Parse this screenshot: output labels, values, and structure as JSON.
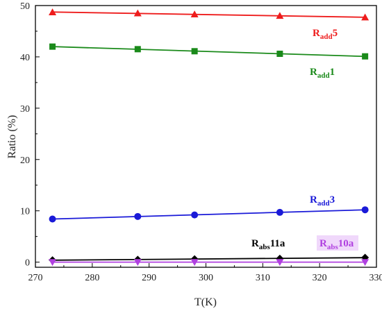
{
  "chart_data": {
    "type": "line",
    "xlabel": "T(K)",
    "ylabel": "Ratio (%)",
    "xlim": [
      270,
      330
    ],
    "ylim": [
      -1,
      50
    ],
    "xticks": [
      270,
      280,
      290,
      300,
      310,
      320,
      330
    ],
    "yticks": [
      0,
      10,
      20,
      30,
      40,
      50
    ],
    "grid": false,
    "series": [
      {
        "main": "R",
        "sub": "add",
        "suffix": "5",
        "color": "#ee1c1c",
        "marker": "triangle",
        "x": [
          273,
          288,
          298,
          313,
          328
        ],
        "y": [
          48.7,
          48.5,
          48.3,
          48.0,
          47.7
        ]
      },
      {
        "main": "R",
        "sub": "add",
        "suffix": "1",
        "color": "#1a8a1a",
        "marker": "square",
        "x": [
          273,
          288,
          298,
          313,
          328
        ],
        "y": [
          42.0,
          41.5,
          41.1,
          40.6,
          40.1
        ]
      },
      {
        "main": "R",
        "sub": "add",
        "suffix": "3",
        "color": "#1a1ad8",
        "marker": "circle",
        "x": [
          273,
          288,
          298,
          313,
          328
        ],
        "y": [
          8.4,
          8.9,
          9.2,
          9.7,
          10.2
        ]
      },
      {
        "main": "R",
        "sub": "abs",
        "suffix": "11a",
        "color": "#000000",
        "marker": "diamond",
        "x": [
          273,
          288,
          298,
          313,
          328
        ],
        "y": [
          0.4,
          0.5,
          0.6,
          0.7,
          0.9
        ]
      },
      {
        "main": "R",
        "sub": "abs",
        "suffix": "10a",
        "color": "#b040e0",
        "marker": "triangle-down",
        "x": [
          273,
          288,
          298,
          313,
          328
        ],
        "y": [
          0.0,
          0.0,
          0.0,
          0.0,
          0.0
        ]
      }
    ]
  }
}
